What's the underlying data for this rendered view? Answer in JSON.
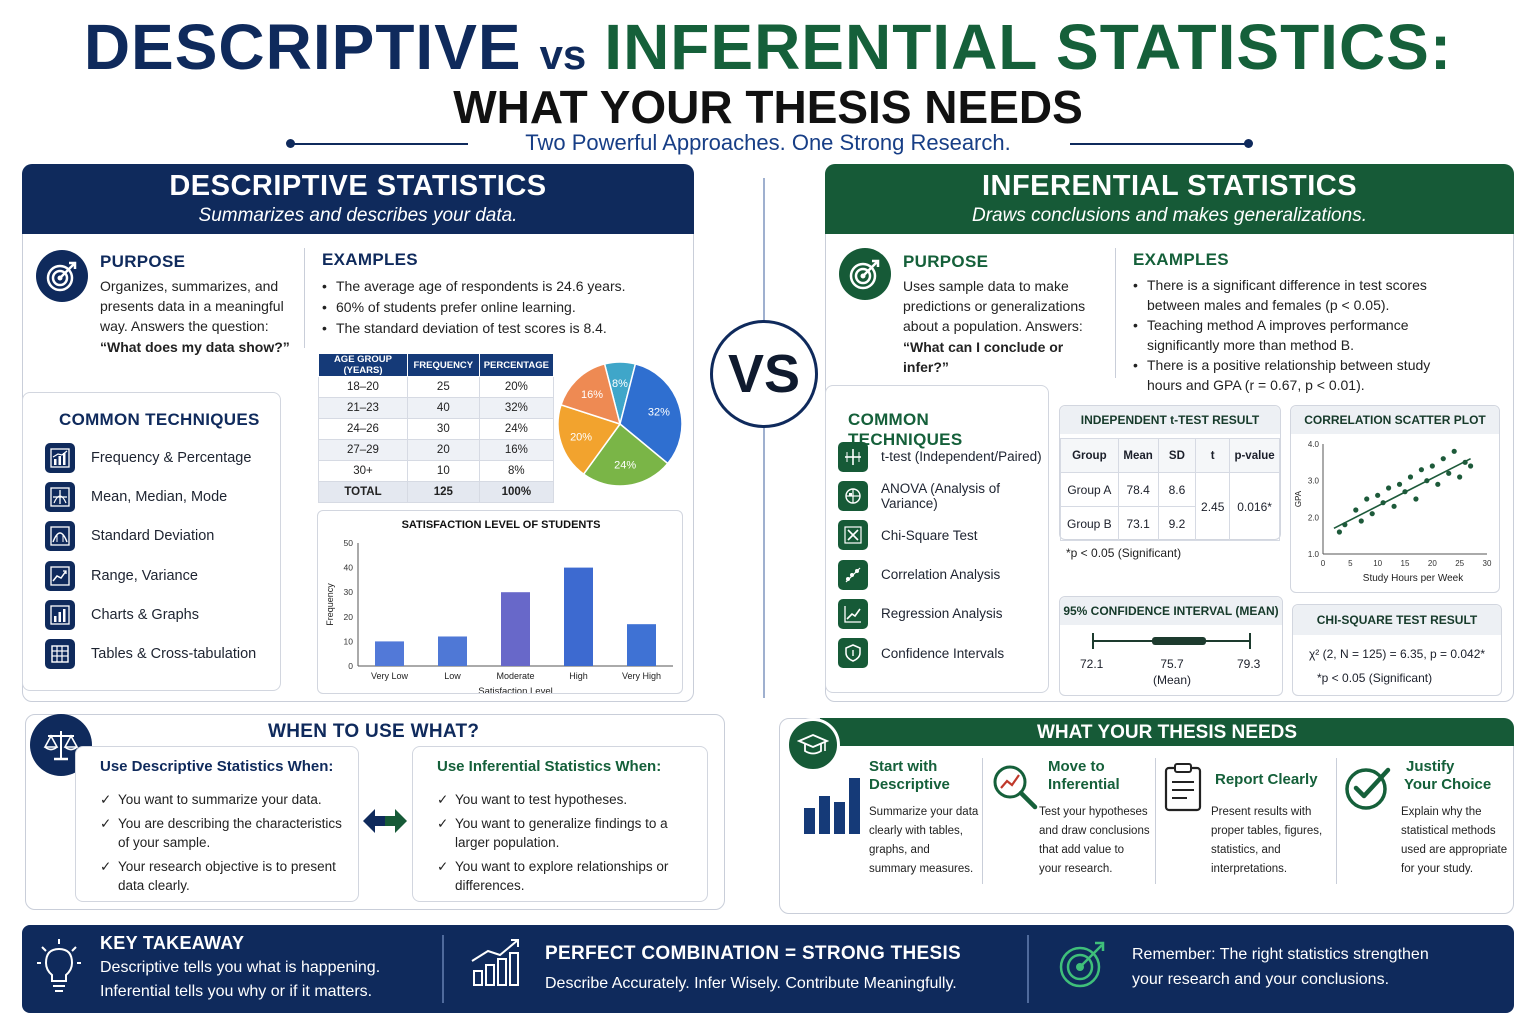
{
  "header": {
    "title_left": "DESCRIPTIVE",
    "title_vs": "vs",
    "title_right": "INFERENTIAL STATISTICS:",
    "subtitle": "WHAT YOUR THESIS NEEDS",
    "tagline": "Two Powerful Approaches. One Strong Research."
  },
  "descriptive": {
    "title": "DESCRIPTIVE STATISTICS",
    "subtitle": "Summarizes and describes your data.",
    "purpose_title": "PURPOSE",
    "purpose_text": "Organizes, summarizes, and presents data in a meaningful way. Answers the question:",
    "purpose_quote": "“What does my data show?”",
    "examples_title": "EXAMPLES",
    "examples": [
      "The average age of respondents is 24.6 years.",
      "60% of students prefer online learning.",
      "The standard deviation of test scores is 8.4."
    ],
    "techniques_title": "COMMON TECHNIQUES",
    "techniques": [
      {
        "label": "Frequency & Percentage",
        "icon": "frequency-chart-icon"
      },
      {
        "label": "Mean, Median, Mode",
        "icon": "central-tendency-icon"
      },
      {
        "label": "Standard Deviation",
        "icon": "deviation-icon"
      },
      {
        "label": "Range, Variance",
        "icon": "range-line-icon"
      },
      {
        "label": "Charts & Graphs",
        "icon": "bar-graph-icon"
      },
      {
        "label": "Tables & Cross-tabulation",
        "icon": "table-grid-icon"
      }
    ],
    "table": {
      "headers": [
        "AGE GROUP (YEARS)",
        "FREQUENCY",
        "PERCENTAGE"
      ],
      "rows": [
        [
          "18–20",
          "25",
          "20%"
        ],
        [
          "21–23",
          "40",
          "32%"
        ],
        [
          "24–26",
          "30",
          "24%"
        ],
        [
          "27–29",
          "20",
          "16%"
        ],
        [
          "30+",
          "10",
          "8%"
        ]
      ],
      "total": [
        "TOTAL",
        "125",
        "100%"
      ]
    }
  },
  "inferential": {
    "title": "INFERENTIAL STATISTICS",
    "subtitle": "Draws conclusions and makes generalizations.",
    "purpose_title": "PURPOSE",
    "purpose_text": "Uses sample data to make predictions or generalizations about a population. Answers:",
    "purpose_quote": "“What can I conclude or infer?”",
    "examples_title": "EXAMPLES",
    "examples": [
      "There is a significant difference in test scores between males and females (p < 0.05).",
      "Teaching method A improves performance significantly more than method B.",
      "There is a positive relationship between study hours and GPA (r = 0.67, p < 0.01)."
    ],
    "techniques_title": "COMMON TECHNIQUES",
    "techniques": [
      {
        "label": "t-test (Independent/Paired)",
        "icon": "t-test-icon"
      },
      {
        "label": "ANOVA (Analysis of Variance)",
        "icon": "anova-icon"
      },
      {
        "label": "Chi-Square Test",
        "icon": "chi-square-icon"
      },
      {
        "label": "Correlation Analysis",
        "icon": "correlation-icon"
      },
      {
        "label": "Regression Analysis",
        "icon": "regression-icon"
      },
      {
        "label": "Confidence Intervals",
        "icon": "shield-icon"
      }
    ],
    "ttest": {
      "title": "INDEPENDENT t-TEST RESULT",
      "headers": [
        "Group",
        "Mean",
        "SD",
        "t",
        "p-value"
      ],
      "row_a": [
        "Group A",
        "78.4",
        "8.6"
      ],
      "row_b": [
        "Group B",
        "73.1",
        "9.2"
      ],
      "t": "2.45",
      "p": "0.016*",
      "note": "*p < 0.05 (Significant)"
    },
    "ci": {
      "title": "95% CONFIDENCE INTERVAL (MEAN)",
      "low": "72.1",
      "mean": "75.7",
      "mean_label": "(Mean)",
      "high": "79.3"
    },
    "chi": {
      "title": "CHI-SQUARE TEST RESULT",
      "result": "χ² (2, N = 125) = 6.35, p = 0.042*",
      "note": "*p < 0.05 (Significant)"
    }
  },
  "vs_label": "VS",
  "when": {
    "title": "WHEN TO USE WHAT?",
    "descriptive_title": "Use Descriptive Statistics When:",
    "descriptive_items": [
      "You want to summarize your data.",
      "You are describing the characteristics of your sample.",
      "Your research objective is to present data clearly."
    ],
    "inferential_title": "Use Inferential Statistics When:",
    "inferential_items": [
      "You want to test hypotheses.",
      "You want to generalize findings to a larger population.",
      "You want to explore relationships or differences."
    ]
  },
  "needs": {
    "title": "WHAT YOUR THESIS NEEDS",
    "items": [
      {
        "title_1": "Start with",
        "title_2": "Descriptive",
        "text": [
          "Summarize your data",
          "clearly with tables,",
          "graphs, and",
          "summary measures."
        ]
      },
      {
        "title_1": "Move to",
        "title_2": "Inferential",
        "text": [
          "Test your hypotheses",
          "and draw conclusions",
          "that add value to",
          "your research."
        ]
      },
      {
        "title_1": "Report Clearly",
        "title_2": "",
        "text": [
          "Present results with",
          "proper tables, figures,",
          "statistics, and",
          "interpretations."
        ]
      },
      {
        "title_1": "Justify",
        "title_2": "Your Choice",
        "text": [
          "Explain why the",
          "statistical methods",
          "used are appropriate",
          "for your study."
        ]
      }
    ]
  },
  "footer": {
    "takeaway_title": "KEY TAKEAWAY",
    "takeaway_1": "Descriptive tells you what is happening.",
    "takeaway_2": "Inferential tells you why or if it matters.",
    "combo_title": "PERFECT COMBINATION = STRONG THESIS",
    "combo_text": "Describe Accurately. Infer Wisely. Contribute Meaningfully.",
    "remember_1": "Remember: The right statistics strengthen",
    "remember_2": "your research and your conclusions."
  },
  "colors": {
    "navy": "#0f2a5c",
    "green": "#165a37",
    "pie": [
      "#2f6fd0",
      "#7ab547",
      "#f2a32e",
      "#ee8a53",
      "#3fa6c9"
    ],
    "bars": [
      "#5279d8",
      "#4f78d6",
      "#6868c9",
      "#3d6ad0",
      "#3f72d4"
    ]
  },
  "chart_data": [
    {
      "type": "pie",
      "categories": [
        "18–20",
        "21–23",
        "24–26",
        "27–29",
        "30+"
      ],
      "values": [
        20,
        32,
        24,
        16,
        8
      ],
      "labels": [
        "20%",
        "32%",
        "24%",
        "16%",
        "8%"
      ]
    },
    {
      "type": "bar",
      "title": "SATISFACTION LEVEL OF STUDENTS",
      "categories": [
        "Very Low",
        "Low",
        "Moderate",
        "High",
        "Very High"
      ],
      "values": [
        10,
        12,
        30,
        40,
        17
      ],
      "xlabel": "Satisfaction Level",
      "ylabel": "Frequency",
      "ylim": [
        0,
        50
      ],
      "yticks": [
        "0",
        "10",
        "20",
        "30",
        "40",
        "50"
      ]
    },
    {
      "type": "scatter",
      "title": "CORRELATION SCATTER PLOT",
      "xlabel": "Study Hours per Week",
      "ylabel": "GPA",
      "xlim": [
        0,
        30
      ],
      "ylim": [
        1.0,
        4.0
      ],
      "xticks": [
        "0",
        "5",
        "10",
        "15",
        "20",
        "25",
        "30"
      ],
      "yticks": [
        "1.0",
        "2.0",
        "3.0",
        "4.0"
      ],
      "x": [
        3,
        4,
        6,
        7,
        8,
        9,
        10,
        11,
        12,
        13,
        14,
        15,
        16,
        17,
        18,
        19,
        20,
        21,
        22,
        23,
        24,
        25,
        26,
        27
      ],
      "y": [
        1.6,
        1.8,
        2.2,
        1.9,
        2.5,
        2.1,
        2.6,
        2.4,
        2.8,
        2.3,
        2.9,
        2.7,
        3.1,
        2.5,
        3.3,
        3.0,
        3.4,
        2.9,
        3.6,
        3.2,
        3.8,
        3.1,
        3.5,
        3.4
      ],
      "trend": [
        [
          2,
          1.7
        ],
        [
          27,
          3.6
        ]
      ]
    }
  ]
}
